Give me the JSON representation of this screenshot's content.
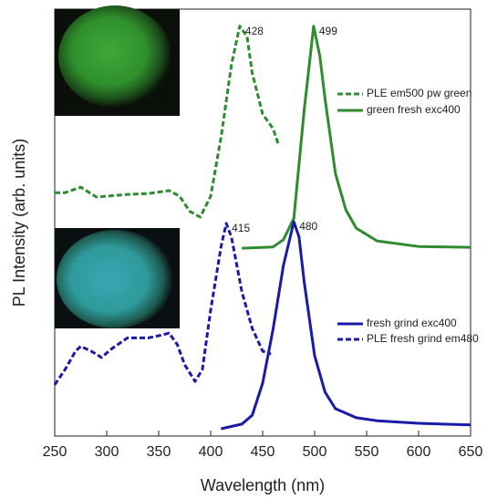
{
  "chart_data": {
    "type": "line",
    "x_label": "Wavelength (nm)",
    "y_label": "PL Intensity (arb. units)",
    "xlim": [
      250,
      650
    ],
    "xticks": [
      250,
      300,
      350,
      400,
      450,
      500,
      550,
      600,
      650
    ],
    "ylim": [
      0,
      100
    ],
    "series": [
      {
        "name": "PLE em500 pw green",
        "color": "#2e8b2e",
        "dashed": true,
        "peak_label": "428",
        "x": [
          250,
          260,
          275,
          290,
          300,
          320,
          340,
          360,
          370,
          380,
          390,
          400,
          410,
          420,
          428,
          435,
          440,
          450,
          460,
          465
        ],
        "values": [
          57,
          57,
          58.3,
          56,
          56.2,
          56.6,
          56.8,
          57.5,
          56.2,
          52.6,
          51.3,
          56.2,
          70,
          87,
          96,
          93.6,
          85,
          75.4,
          72,
          68.4
        ]
      },
      {
        "name": "green fresh exc400",
        "color": "#2e8b2e",
        "dashed": false,
        "peak_label": "499",
        "x": [
          430,
          460,
          470,
          480,
          490,
          499,
          505,
          510,
          520,
          530,
          540,
          560,
          600,
          650
        ],
        "values": [
          44,
          44.3,
          46,
          51,
          76.5,
          96,
          89,
          79,
          61.5,
          53,
          48.7,
          45.7,
          44.4,
          44.2
        ]
      },
      {
        "name": "fresh grind exc400",
        "color": "#1a1aaa",
        "dashed": false,
        "peak_label": "480",
        "x": [
          410,
          430,
          440,
          450,
          460,
          470,
          480,
          485,
          490,
          500,
          510,
          520,
          540,
          560,
          600,
          650
        ],
        "values": [
          1.7,
          2.8,
          4.9,
          12.4,
          25,
          40,
          50.2,
          46.6,
          36,
          18.8,
          10.3,
          6.4,
          4.3,
          3.6,
          3,
          2.6
        ]
      },
      {
        "name": "PLE fresh grind em480",
        "color": "#1a1aaa",
        "dashed": true,
        "peak_label": "415",
        "x": [
          250,
          260,
          270,
          275,
          285,
          295,
          305,
          320,
          340,
          350,
          360,
          368,
          375,
          385,
          392,
          400,
          410,
          415,
          420,
          430,
          440,
          450,
          458
        ],
        "values": [
          12,
          15.6,
          19.9,
          21,
          19.9,
          18.4,
          20.5,
          23,
          23,
          23.5,
          24.1,
          21.4,
          16.7,
          12.8,
          15.6,
          29.5,
          44.4,
          49.8,
          46.6,
          33.8,
          25.2,
          19.9,
          19.2
        ]
      }
    ]
  }
}
